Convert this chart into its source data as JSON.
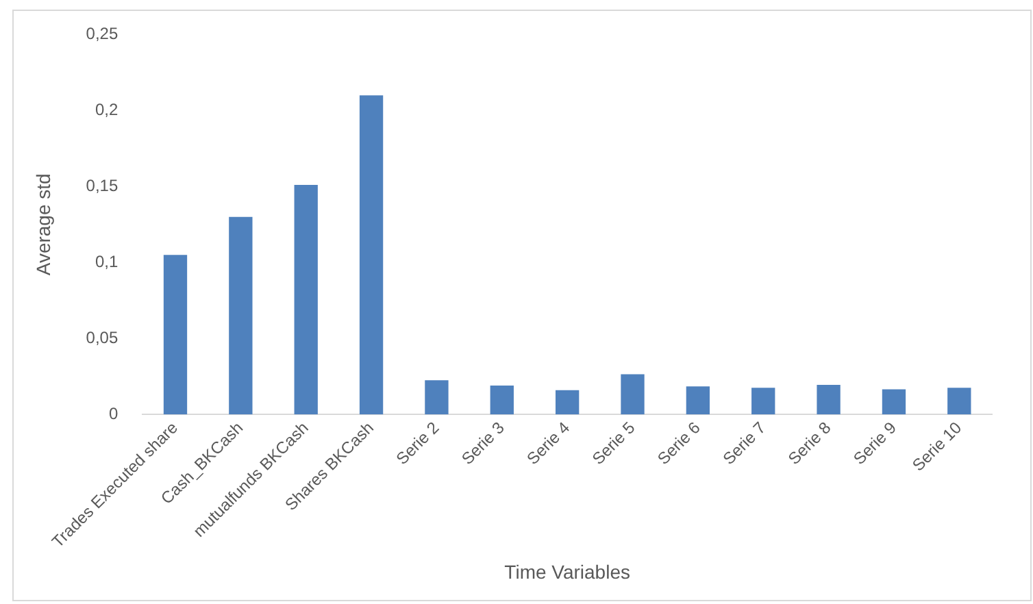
{
  "chart_data": {
    "type": "bar",
    "xlabel": "Time Variables",
    "ylabel": "Average std",
    "categories": [
      "Trades Executed share",
      "Cash_BKCash",
      "mutualfunds BKCash",
      "Shares BKCash",
      "Serie 2",
      "Serie 3",
      "Serie 4",
      "Serie 5",
      "Serie 6",
      "Serie 7",
      "Serie 8",
      "Serie 9",
      "Serie 10"
    ],
    "values": [
      0.105,
      0.13,
      0.151,
      0.21,
      0.0225,
      0.019,
      0.016,
      0.0265,
      0.0185,
      0.0175,
      0.0195,
      0.0165,
      0.0175
    ],
    "color": "#4f81bd",
    "ylim": [
      0,
      0.25
    ],
    "yticks": [
      {
        "value": 0,
        "label": "0"
      },
      {
        "value": 0.05,
        "label": "0,05"
      },
      {
        "value": 0.1,
        "label": "0,1"
      },
      {
        "value": 0.15,
        "label": "0,15"
      },
      {
        "value": 0.2,
        "label": "0,2"
      },
      {
        "value": 0.25,
        "label": "0,25"
      }
    ],
    "grid": false,
    "legend": false
  }
}
